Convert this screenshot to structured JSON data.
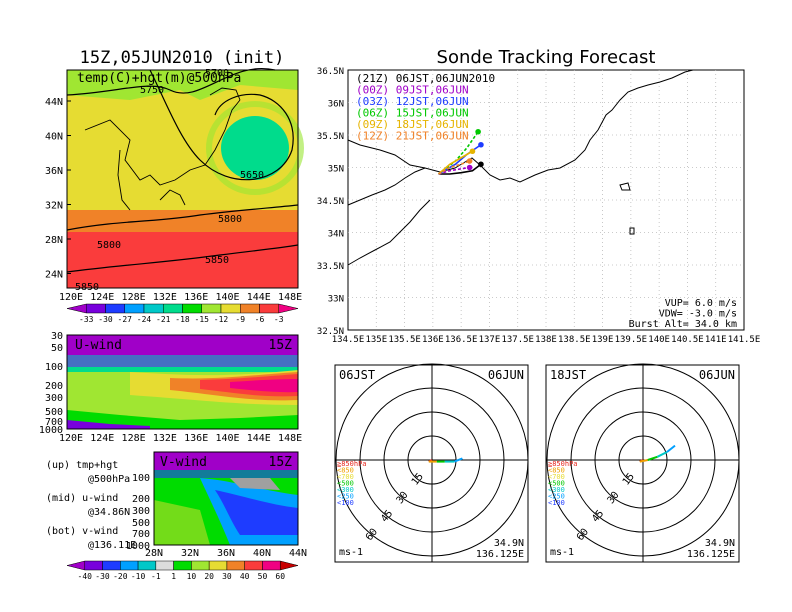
{
  "left": {
    "title": "15Z,05JUN2010 (init)",
    "map_label": "temp(C)+hgt(m)@500hPa",
    "map_xticks": [
      "120E",
      "124E",
      "128E",
      "132E",
      "136E",
      "140E",
      "144E",
      "148E"
    ],
    "map_yticks": [
      "44N",
      "40N",
      "36N",
      "32N",
      "28N",
      "24N"
    ],
    "contour_labels": [
      "5700",
      "5750",
      "5650",
      "5800",
      "5800",
      "5850",
      "5850"
    ],
    "temp_levels": [
      "-33",
      "-30",
      "-27",
      "-24",
      "-21",
      "-18",
      "-15",
      "-12",
      "-9",
      "-6",
      "-3"
    ],
    "temp_colors": [
      "#a000c8",
      "#7800dc",
      "#1e3cff",
      "#00a0ff",
      "#00c8c8",
      "#00dc8c",
      "#00dc00",
      "#a0e632",
      "#e6dc32",
      "#f08228",
      "#fa3c3c",
      "#f00082"
    ],
    "uwind_label": "U-wind",
    "uwind_time": "15Z",
    "uwind_xticks": [
      "120E",
      "124E",
      "128E",
      "132E",
      "136E",
      "140E",
      "144E",
      "148E"
    ],
    "p_ticks": [
      "30",
      "50",
      "100",
      "200",
      "300",
      "500",
      "700",
      "1000"
    ],
    "vwind_label": "V-wind",
    "vwind_time": "15Z",
    "vwind_xticks": [
      "28N",
      "32N",
      "36N",
      "40N",
      "44N"
    ],
    "vwind_p_ticks": [
      "100",
      "200",
      "300",
      "500",
      "700",
      "1000"
    ],
    "notes": [
      {
        "k": "(up)",
        "a": "tmp+hgt",
        "b": "@500hPa"
      },
      {
        "k": "(mid)",
        "a": "u-wind",
        "b": "@34.86N"
      },
      {
        "k": "(bot)",
        "a": "v-wind",
        "b": "@136.11E"
      }
    ],
    "wind_levels": [
      "-40",
      "-30",
      "-20",
      "-10",
      "-1",
      "1",
      "10",
      "20",
      "30",
      "40",
      "50",
      "60"
    ],
    "wind_colors": [
      "#a000c8",
      "#7800dc",
      "#1e3cff",
      "#00a0ff",
      "#00c8c8",
      "#dcdcdc",
      "#00dc00",
      "#a0e632",
      "#e6dc32",
      "#f08228",
      "#fa3c3c",
      "#f00082",
      "#c80000"
    ]
  },
  "right": {
    "title": "Sonde Tracking Forecast",
    "legend": [
      {
        "text": "(21Z) 06JST,06JUN2010",
        "color": "#000000"
      },
      {
        "text": "(00Z) 09JST,06JUN",
        "color": "#a000c8"
      },
      {
        "text": "(03Z) 12JST,06JUN",
        "color": "#1e3cff"
      },
      {
        "text": "(06Z) 15JST,06JUN",
        "color": "#00c800"
      },
      {
        "text": "(09Z) 18JST,06JUN",
        "color": "#e6b400"
      },
      {
        "text": "(12Z) 21JST,06JUN",
        "color": "#f08228"
      }
    ],
    "xticks": [
      "134.5E",
      "135E",
      "135.5E",
      "136E",
      "136.5E",
      "137E",
      "137.5E",
      "138E",
      "138.5E",
      "139E",
      "139.5E",
      "140E",
      "140.5E",
      "141E",
      "141.5E"
    ],
    "yticks": [
      "36.5N",
      "36N",
      "35.5N",
      "35N",
      "34.5N",
      "34N",
      "33.5N",
      "33N",
      "32.5N"
    ],
    "params": [
      "VUP= 6.0 m/s",
      "VDW= -3.0 m/s",
      "Burst Alt= 34.0 km"
    ],
    "xlim": [
      134.5,
      141.5
    ],
    "ylim": [
      32.5,
      36.5
    ]
  },
  "hodo": [
    {
      "time": "06JST",
      "date": "06JUN",
      "ring_labels": [
        "15",
        "30",
        "45",
        "60"
      ],
      "unit": "ms-1",
      "lat": "34.9N",
      "lon": "136.125E",
      "levels": [
        {
          "t": "≧850hPa",
          "c": "#e6281e"
        },
        {
          "t": "<850",
          "c": "#f0a000"
        },
        {
          "t": "<700",
          "c": "#e6dc32"
        },
        {
          "t": "<500",
          "c": "#00c800"
        },
        {
          "t": "<300",
          "c": "#00c8c8"
        },
        {
          "t": "<250",
          "c": "#00a0ff"
        },
        {
          "t": "<100",
          "c": "#1e3cff"
        }
      ]
    },
    {
      "time": "18JST",
      "date": "06JUN",
      "ring_labels": [
        "15",
        "30",
        "45",
        "60"
      ],
      "unit": "ms-1",
      "lat": "34.9N",
      "lon": "136.125E",
      "levels": [
        {
          "t": "≧850hPa",
          "c": "#e6281e"
        },
        {
          "t": "<850",
          "c": "#f0a000"
        },
        {
          "t": "<700",
          "c": "#e6dc32"
        },
        {
          "t": "<500",
          "c": "#00c800"
        },
        {
          "t": "<300",
          "c": "#00c8c8"
        },
        {
          "t": "<250",
          "c": "#00a0ff"
        },
        {
          "t": "<100",
          "c": "#1e3cff"
        }
      ]
    }
  ],
  "chart_data": [
    {
      "type": "heatmap",
      "title": "15Z,05JUN2010 (init)",
      "subtitle": "temp(C)+hgt(m)@500hPa",
      "xlabel": "",
      "ylabel": "",
      "xlim": [
        120,
        150
      ],
      "ylim": [
        22,
        47
      ]
    },
    {
      "type": "heatmap",
      "title": "U-wind",
      "xlim": [
        120,
        150
      ],
      "ylim": [
        1000,
        30
      ]
    },
    {
      "type": "heatmap",
      "title": "V-wind",
      "xlim": [
        28,
        44
      ],
      "ylim": [
        1000,
        30
      ]
    },
    {
      "type": "line",
      "title": "Sonde Tracking Forecast",
      "xlim": [
        134.5,
        141.5
      ],
      "ylim": [
        32.5,
        36.5
      ],
      "series": [
        {
          "name": "(21Z) 06JST,06JUN2010",
          "x": [
            136.1,
            136.3,
            136.5,
            136.7,
            136.85
          ],
          "y": [
            34.9,
            34.9,
            34.92,
            34.95,
            35.05
          ]
        },
        {
          "name": "(00Z) 09JST,06JUN",
          "x": [
            136.1,
            136.3,
            136.5,
            136.65
          ],
          "y": [
            34.9,
            34.95,
            34.98,
            35.0
          ]
        },
        {
          "name": "(03Z) 12JST,06JUN",
          "x": [
            136.1,
            136.4,
            136.6,
            136.85
          ],
          "y": [
            34.9,
            35.05,
            35.2,
            35.35
          ]
        },
        {
          "name": "(06Z) 15JST,06JUN",
          "x": [
            136.1,
            136.4,
            136.6,
            136.8
          ],
          "y": [
            34.9,
            35.1,
            35.3,
            35.55
          ]
        },
        {
          "name": "(09Z) 18JST,06JUN",
          "x": [
            136.1,
            136.3,
            136.5,
            136.7
          ],
          "y": [
            34.9,
            35.05,
            35.15,
            35.25
          ]
        },
        {
          "name": "(12Z) 21JST,06JUN",
          "x": [
            136.1,
            136.3,
            136.5,
            136.65
          ],
          "y": [
            34.9,
            35.0,
            35.05,
            35.1
          ]
        }
      ]
    },
    {
      "type": "scatter",
      "title": "06JST 06JUN",
      "x": [
        0,
        -2,
        3,
        8,
        14,
        19
      ],
      "y": [
        0,
        -1,
        -1,
        -1,
        -1,
        1
      ]
    },
    {
      "type": "scatter",
      "title": "18JST 06JUN",
      "x": [
        0,
        -2,
        3,
        9,
        15,
        20
      ],
      "y": [
        0,
        -1,
        0,
        2,
        5,
        9
      ]
    }
  ]
}
